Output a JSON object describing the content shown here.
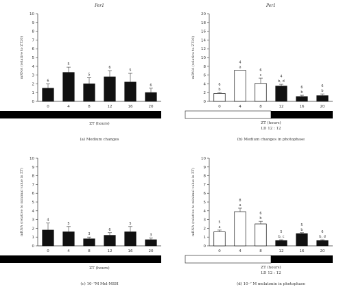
{
  "figure": {
    "panels": [
      {
        "caption": "(a)  Medium changes"
      },
      {
        "caption": "(b)  Medium changes in photophase"
      },
      {
        "caption": "(c) 10⁻⁷M Mel-MSH"
      },
      {
        "caption": "(d) 10⁻⁷ M melatonin in photophase"
      }
    ]
  },
  "colors": {
    "bar_filled": "#111111",
    "bar_open": "#ffffff",
    "axis": "#333333",
    "dark_phase": "#000000",
    "light_phase": "#ffffff"
  },
  "chart_data": [
    {
      "type": "bar",
      "title": "Per1",
      "ylabel": "mRNA (relative to ZT20)",
      "xlabel": "ZT (hours)",
      "ylim": [
        0,
        10
      ],
      "yticks": [
        "0",
        "1",
        "2",
        "3",
        "4",
        "5",
        "6",
        "7",
        "8",
        "9",
        "10"
      ],
      "categories": [
        "0",
        "4",
        "8",
        "12",
        "16",
        "20"
      ],
      "series": [
        {
          "values": [
            1.5,
            3.3,
            2.0,
            2.8,
            2.2,
            1.0
          ],
          "errors": [
            0.5,
            0.6,
            0.7,
            0.7,
            1.0,
            0.5
          ]
        }
      ],
      "n_labels": [
        "6",
        "5",
        "5",
        "6",
        "5",
        "6"
      ],
      "sig_labels": [
        "",
        "",
        "",
        "",
        "",
        ""
      ],
      "bar_fill": [
        "filled",
        "filled",
        "filled",
        "filled",
        "filled",
        "filled"
      ],
      "photoperiod": {
        "bar": "dark",
        "label": ""
      }
    },
    {
      "type": "bar",
      "title": "Per1",
      "ylabel": "mRNA (relative to ZT20)",
      "xlabel": "ZT (hours)",
      "ylim": [
        0,
        20
      ],
      "yticks": [
        "0",
        "2",
        "4",
        "6",
        "8",
        "10",
        "12",
        "14",
        "16",
        "18",
        "20"
      ],
      "categories": [
        "0",
        "4",
        "8",
        "12",
        "16",
        "20"
      ],
      "series": [
        {
          "values": [
            1.8,
            7.1,
            4.1,
            3.5,
            1.1,
            1.3
          ],
          "errors": [
            0.2,
            0.0,
            1.2,
            0.4,
            0.3,
            0.4
          ]
        }
      ],
      "n_labels": [
        "6",
        "4",
        "6",
        "4",
        "6",
        "6"
      ],
      "sig_labels": [
        "b",
        "a",
        "c",
        "b, d",
        "b",
        "b"
      ],
      "bar_fill": [
        "open",
        "open",
        "open",
        "filled",
        "filled",
        "filled"
      ],
      "photoperiod": {
        "bar": "light-dark",
        "label": "LD 12 : 12"
      }
    },
    {
      "type": "bar",
      "title": "",
      "ylabel": "mRNA (relative to minimal value in ZT)",
      "xlabel": "ZT (hours)",
      "ylim": [
        0,
        10
      ],
      "yticks": [
        "0",
        "1",
        "2",
        "3",
        "4",
        "5",
        "6",
        "7",
        "8",
        "9",
        "10"
      ],
      "categories": [
        "0",
        "4",
        "8",
        "12",
        "16",
        "20"
      ],
      "series": [
        {
          "values": [
            1.8,
            1.6,
            0.8,
            1.2,
            1.6,
            0.7
          ],
          "errors": [
            0.8,
            0.6,
            0.2,
            0.3,
            0.6,
            0.2
          ]
        }
      ],
      "n_labels": [
        "4",
        "5",
        "3",
        "6",
        "5",
        "3"
      ],
      "sig_labels": [
        "",
        "",
        "",
        "",
        "",
        ""
      ],
      "bar_fill": [
        "filled",
        "filled",
        "filled",
        "filled",
        "filled",
        "filled"
      ],
      "photoperiod": {
        "bar": "dark",
        "label": ""
      }
    },
    {
      "type": "bar",
      "title": "",
      "ylabel": "mRNA (relative to minimal value in ZT)",
      "xlabel": "ZT (hours)",
      "ylim": [
        0,
        10
      ],
      "yticks": [
        "0",
        "1",
        "2",
        "3",
        "4",
        "5",
        "6",
        "7",
        "8",
        "9",
        "10"
      ],
      "categories": [
        "0",
        "4",
        "8",
        "12",
        "16",
        "20"
      ],
      "series": [
        {
          "values": [
            1.6,
            3.9,
            2.5,
            0.6,
            1.4,
            0.6
          ],
          "errors": [
            0.2,
            0.4,
            0.3,
            0.1,
            0.1,
            0.1
          ]
        }
      ],
      "n_labels": [
        "5",
        "8",
        "6",
        "5",
        "5",
        "6"
      ],
      "sig_labels": [
        "a",
        "a",
        "b",
        "b, c",
        "b",
        "b, d"
      ],
      "bar_fill": [
        "open",
        "open",
        "open",
        "filled",
        "filled",
        "filled"
      ],
      "photoperiod": {
        "bar": "light-dark",
        "label": "LD 12 : 12"
      }
    }
  ]
}
